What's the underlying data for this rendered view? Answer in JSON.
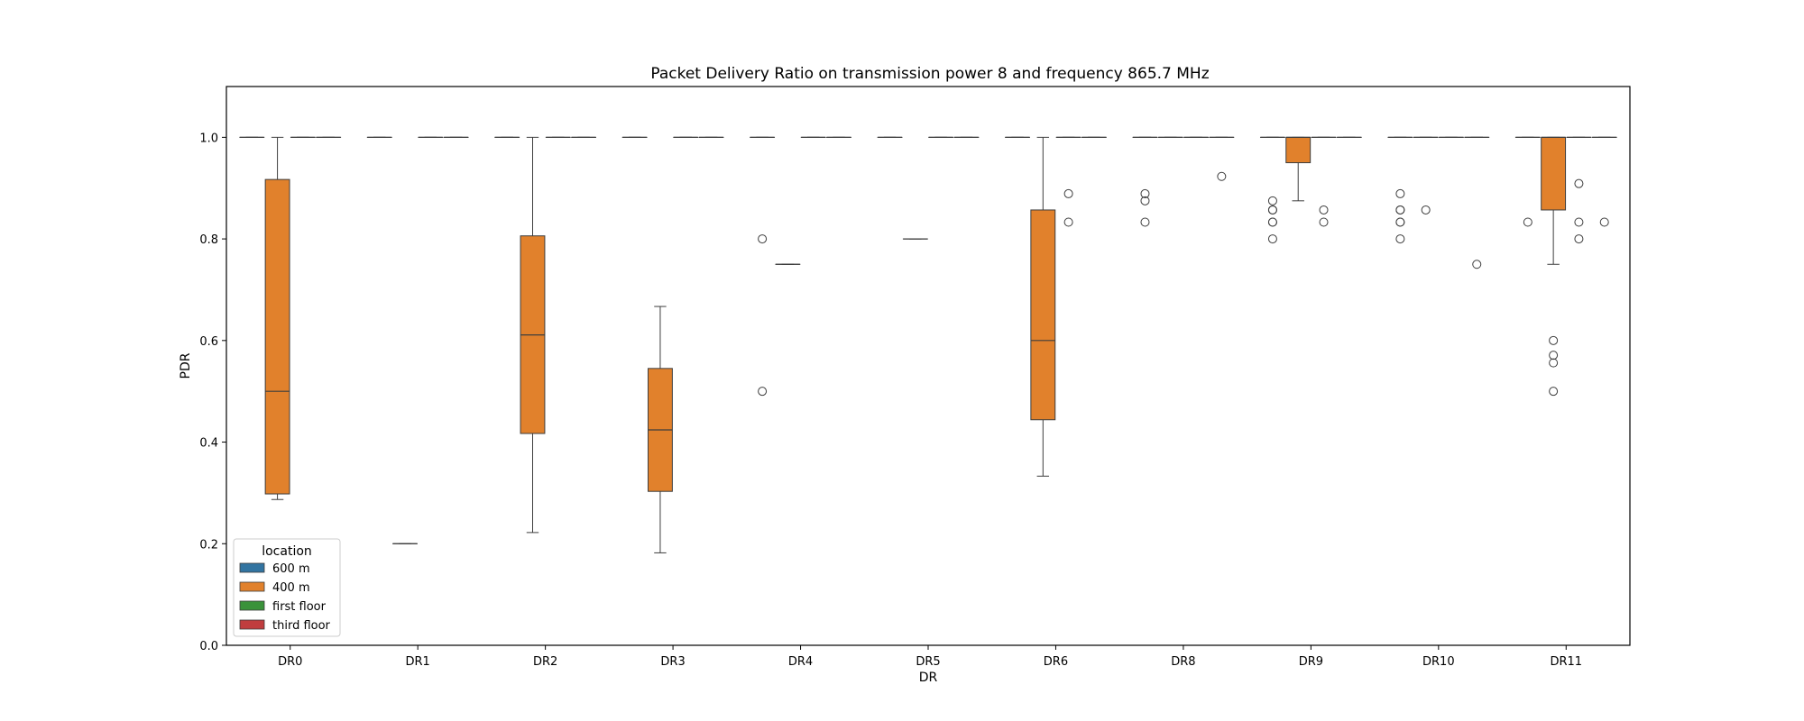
{
  "chart_data": {
    "type": "box",
    "title": "Packet Delivery Ratio on transmission power 8 and frequency 865.7 MHz",
    "xlabel": "DR",
    "ylabel": "PDR",
    "ylim": [
      0,
      1.1
    ],
    "yticks": [
      "0.0",
      "0.2",
      "0.4",
      "0.6",
      "0.8",
      "1.0"
    ],
    "categories": [
      "DR0",
      "DR1",
      "DR2",
      "DR3",
      "DR4",
      "DR5",
      "DR6",
      "DR8",
      "DR9",
      "DR10",
      "DR11"
    ],
    "legend": {
      "title": "location",
      "placement": "lower-left",
      "entries": [
        {
          "name": "600 m",
          "color": "#3274a1"
        },
        {
          "name": "400 m",
          "color": "#e1812c"
        },
        {
          "name": "first floor",
          "color": "#3a923a"
        },
        {
          "name": "third floor",
          "color": "#c03d3e"
        }
      ]
    },
    "series": [
      {
        "name": "600 m",
        "boxes": [
          {
            "category": "DR0",
            "whislo": 1.0,
            "q1": 1.0,
            "med": 1.0,
            "q3": 1.0,
            "whishi": 1.0,
            "fliers": []
          },
          {
            "category": "DR1",
            "whislo": 1.0,
            "q1": 1.0,
            "med": 1.0,
            "q3": 1.0,
            "whishi": 1.0,
            "fliers": []
          },
          {
            "category": "DR2",
            "whislo": 1.0,
            "q1": 1.0,
            "med": 1.0,
            "q3": 1.0,
            "whishi": 1.0,
            "fliers": []
          },
          {
            "category": "DR3",
            "whislo": 1.0,
            "q1": 1.0,
            "med": 1.0,
            "q3": 1.0,
            "whishi": 1.0,
            "fliers": []
          },
          {
            "category": "DR4",
            "whislo": 1.0,
            "q1": 1.0,
            "med": 1.0,
            "q3": 1.0,
            "whishi": 1.0,
            "fliers": [
              0.8,
              0.5
            ]
          },
          {
            "category": "DR5",
            "whislo": 1.0,
            "q1": 1.0,
            "med": 1.0,
            "q3": 1.0,
            "whishi": 1.0,
            "fliers": []
          },
          {
            "category": "DR6",
            "whislo": 1.0,
            "q1": 1.0,
            "med": 1.0,
            "q3": 1.0,
            "whishi": 1.0,
            "fliers": []
          },
          {
            "category": "DR8",
            "whislo": 1.0,
            "q1": 1.0,
            "med": 1.0,
            "q3": 1.0,
            "whishi": 1.0,
            "fliers": [
              0.889,
              0.875,
              0.833
            ]
          },
          {
            "category": "DR9",
            "whislo": 1.0,
            "q1": 1.0,
            "med": 1.0,
            "q3": 1.0,
            "whishi": 1.0,
            "fliers": [
              0.875,
              0.857,
              0.857,
              0.833,
              0.833,
              0.8
            ]
          },
          {
            "category": "DR10",
            "whislo": 1.0,
            "q1": 1.0,
            "med": 1.0,
            "q3": 1.0,
            "whishi": 1.0,
            "fliers": [
              0.889,
              0.857,
              0.857,
              0.833,
              0.833,
              0.8
            ]
          },
          {
            "category": "DR11",
            "whislo": 1.0,
            "q1": 1.0,
            "med": 1.0,
            "q3": 1.0,
            "whishi": 1.0,
            "fliers": [
              0.833
            ]
          }
        ]
      },
      {
        "name": "400 m",
        "boxes": [
          {
            "category": "DR0",
            "whislo": 0.287,
            "q1": 0.298,
            "med": 0.5,
            "q3": 0.917,
            "whishi": 1.0,
            "fliers": []
          },
          {
            "category": "DR1",
            "whislo": 0.2,
            "q1": 0.2,
            "med": 0.2,
            "q3": 0.2,
            "whishi": 0.2,
            "fliers": []
          },
          {
            "category": "DR2",
            "whislo": 0.222,
            "q1": 0.417,
            "med": 0.611,
            "q3": 0.806,
            "whishi": 1.0,
            "fliers": []
          },
          {
            "category": "DR3",
            "whislo": 0.182,
            "q1": 0.303,
            "med": 0.424,
            "q3": 0.545,
            "whishi": 0.667,
            "fliers": []
          },
          {
            "category": "DR4",
            "whislo": 0.75,
            "q1": 0.75,
            "med": 0.75,
            "q3": 0.75,
            "whishi": 0.75,
            "fliers": []
          },
          {
            "category": "DR5",
            "whislo": 0.8,
            "q1": 0.8,
            "med": 0.8,
            "q3": 0.8,
            "whishi": 0.8,
            "fliers": []
          },
          {
            "category": "DR6",
            "whislo": 0.333,
            "q1": 0.444,
            "med": 0.6,
            "q3": 0.857,
            "whishi": 1.0,
            "fliers": []
          },
          {
            "category": "DR8",
            "whislo": 1.0,
            "q1": 1.0,
            "med": 1.0,
            "q3": 1.0,
            "whishi": 1.0,
            "fliers": []
          },
          {
            "category": "DR9",
            "whislo": 0.875,
            "q1": 0.95,
            "med": 1.0,
            "q3": 1.0,
            "whishi": 1.0,
            "fliers": []
          },
          {
            "category": "DR10",
            "whislo": 1.0,
            "q1": 1.0,
            "med": 1.0,
            "q3": 1.0,
            "whishi": 1.0,
            "fliers": [
              0.857
            ]
          },
          {
            "category": "DR11",
            "whislo": 0.75,
            "q1": 0.857,
            "med": 1.0,
            "q3": 1.0,
            "whishi": 1.0,
            "fliers": [
              0.6,
              0.571,
              0.556,
              0.5
            ]
          }
        ]
      },
      {
        "name": "first floor",
        "boxes": [
          {
            "category": "DR0",
            "whislo": 1.0,
            "q1": 1.0,
            "med": 1.0,
            "q3": 1.0,
            "whishi": 1.0,
            "fliers": []
          },
          {
            "category": "DR1",
            "whislo": 1.0,
            "q1": 1.0,
            "med": 1.0,
            "q3": 1.0,
            "whishi": 1.0,
            "fliers": []
          },
          {
            "category": "DR2",
            "whislo": 1.0,
            "q1": 1.0,
            "med": 1.0,
            "q3": 1.0,
            "whishi": 1.0,
            "fliers": []
          },
          {
            "category": "DR3",
            "whislo": 1.0,
            "q1": 1.0,
            "med": 1.0,
            "q3": 1.0,
            "whishi": 1.0,
            "fliers": []
          },
          {
            "category": "DR4",
            "whislo": 1.0,
            "q1": 1.0,
            "med": 1.0,
            "q3": 1.0,
            "whishi": 1.0,
            "fliers": []
          },
          {
            "category": "DR5",
            "whislo": 1.0,
            "q1": 1.0,
            "med": 1.0,
            "q3": 1.0,
            "whishi": 1.0,
            "fliers": []
          },
          {
            "category": "DR6",
            "whislo": 1.0,
            "q1": 1.0,
            "med": 1.0,
            "q3": 1.0,
            "whishi": 1.0,
            "fliers": [
              0.889,
              0.833
            ]
          },
          {
            "category": "DR8",
            "whislo": 1.0,
            "q1": 1.0,
            "med": 1.0,
            "q3": 1.0,
            "whishi": 1.0,
            "fliers": []
          },
          {
            "category": "DR9",
            "whislo": 1.0,
            "q1": 1.0,
            "med": 1.0,
            "q3": 1.0,
            "whishi": 1.0,
            "fliers": [
              0.857,
              0.833
            ]
          },
          {
            "category": "DR10",
            "whislo": 1.0,
            "q1": 1.0,
            "med": 1.0,
            "q3": 1.0,
            "whishi": 1.0,
            "fliers": []
          },
          {
            "category": "DR11",
            "whislo": 1.0,
            "q1": 1.0,
            "med": 1.0,
            "q3": 1.0,
            "whishi": 1.0,
            "fliers": [
              0.909,
              0.833,
              0.8
            ]
          }
        ]
      },
      {
        "name": "third floor",
        "boxes": [
          {
            "category": "DR0",
            "whislo": 1.0,
            "q1": 1.0,
            "med": 1.0,
            "q3": 1.0,
            "whishi": 1.0,
            "fliers": []
          },
          {
            "category": "DR1",
            "whislo": 1.0,
            "q1": 1.0,
            "med": 1.0,
            "q3": 1.0,
            "whishi": 1.0,
            "fliers": []
          },
          {
            "category": "DR2",
            "whislo": 1.0,
            "q1": 1.0,
            "med": 1.0,
            "q3": 1.0,
            "whishi": 1.0,
            "fliers": []
          },
          {
            "category": "DR3",
            "whislo": 1.0,
            "q1": 1.0,
            "med": 1.0,
            "q3": 1.0,
            "whishi": 1.0,
            "fliers": []
          },
          {
            "category": "DR4",
            "whislo": 1.0,
            "q1": 1.0,
            "med": 1.0,
            "q3": 1.0,
            "whishi": 1.0,
            "fliers": []
          },
          {
            "category": "DR5",
            "whislo": 1.0,
            "q1": 1.0,
            "med": 1.0,
            "q3": 1.0,
            "whishi": 1.0,
            "fliers": []
          },
          {
            "category": "DR6",
            "whislo": 1.0,
            "q1": 1.0,
            "med": 1.0,
            "q3": 1.0,
            "whishi": 1.0,
            "fliers": []
          },
          {
            "category": "DR8",
            "whislo": 1.0,
            "q1": 1.0,
            "med": 1.0,
            "q3": 1.0,
            "whishi": 1.0,
            "fliers": [
              0.923
            ]
          },
          {
            "category": "DR9",
            "whislo": 1.0,
            "q1": 1.0,
            "med": 1.0,
            "q3": 1.0,
            "whishi": 1.0,
            "fliers": []
          },
          {
            "category": "DR10",
            "whislo": 1.0,
            "q1": 1.0,
            "med": 1.0,
            "q3": 1.0,
            "whishi": 1.0,
            "fliers": [
              0.75
            ]
          },
          {
            "category": "DR11",
            "whislo": 1.0,
            "q1": 1.0,
            "med": 1.0,
            "q3": 1.0,
            "whishi": 1.0,
            "fliers": [
              0.833
            ]
          }
        ]
      }
    ]
  }
}
